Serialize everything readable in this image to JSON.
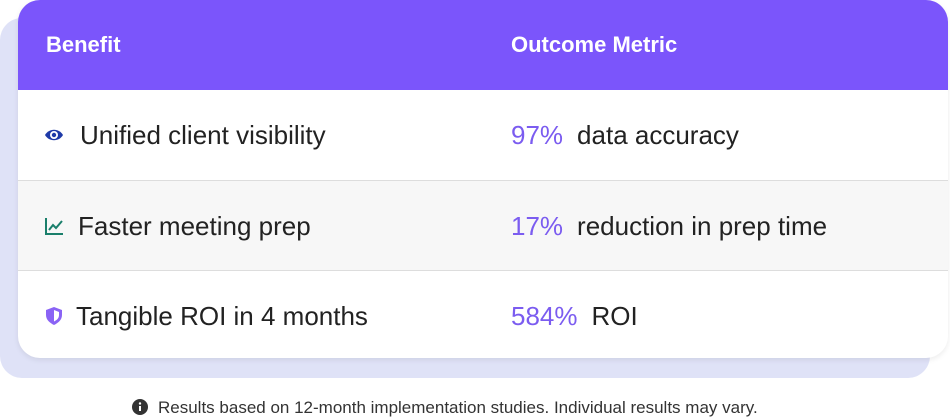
{
  "table": {
    "header": [
      "Benefit",
      "Outcome Metric"
    ],
    "rows": [
      {
        "benefit": "Unified client visibility",
        "metric": "97%",
        "description": "data accuracy"
      },
      {
        "benefit": "Faster meeting prep",
        "metric": "17%",
        "description": "reduction in prep time"
      },
      {
        "benefit": "Tangible ROI in 4 months",
        "metric": "584%",
        "description": "ROI"
      }
    ]
  },
  "footnote": "Results based on 12-month implementation studies. Individual results may vary."
}
